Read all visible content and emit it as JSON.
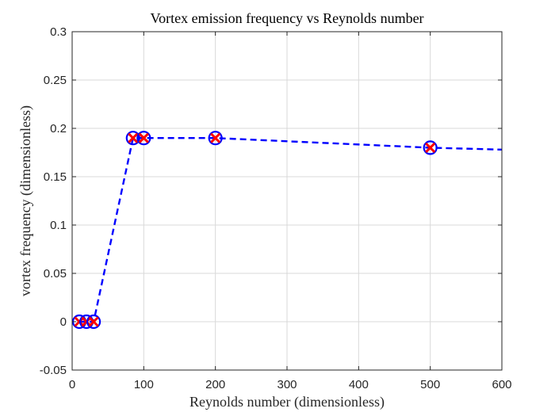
{
  "chart_data": {
    "type": "line",
    "title": "Vortex emission frequency vs Reynolds number",
    "xlabel": "Reynolds number (dimensionless)",
    "ylabel": "vortex frequency (dimensionless)",
    "xlim": [
      0,
      600
    ],
    "ylim": [
      -0.05,
      0.3
    ],
    "grid": true,
    "xticks": [
      0,
      100,
      200,
      300,
      400,
      500,
      600
    ],
    "yticks": [
      -0.05,
      0,
      0.05,
      0.1,
      0.15,
      0.2,
      0.25,
      0.3
    ],
    "xtick_labels": [
      "0",
      "100",
      "200",
      "300",
      "400",
      "500",
      "600"
    ],
    "ytick_labels": [
      "-0.05",
      "0",
      "0.05",
      "0.1",
      "0.15",
      "0.2",
      "0.25",
      "0.3"
    ],
    "series": [
      {
        "name": "data points",
        "x": [
          10,
          20,
          30,
          85,
          100,
          200,
          500
        ],
        "y": [
          0,
          0,
          0,
          0.19,
          0.19,
          0.19,
          0.18
        ],
        "marker_outer": "circle",
        "marker_inner": "x",
        "marker_outer_color": "#0000ff",
        "marker_inner_color": "#ff0000"
      },
      {
        "name": "fit",
        "x": [
          10,
          20,
          30,
          85,
          100,
          200,
          500,
          600
        ],
        "y": [
          0,
          0,
          0,
          0.19,
          0.19,
          0.19,
          0.18,
          0.178
        ],
        "line_style": "dashed",
        "color": "#0000ff"
      }
    ]
  }
}
